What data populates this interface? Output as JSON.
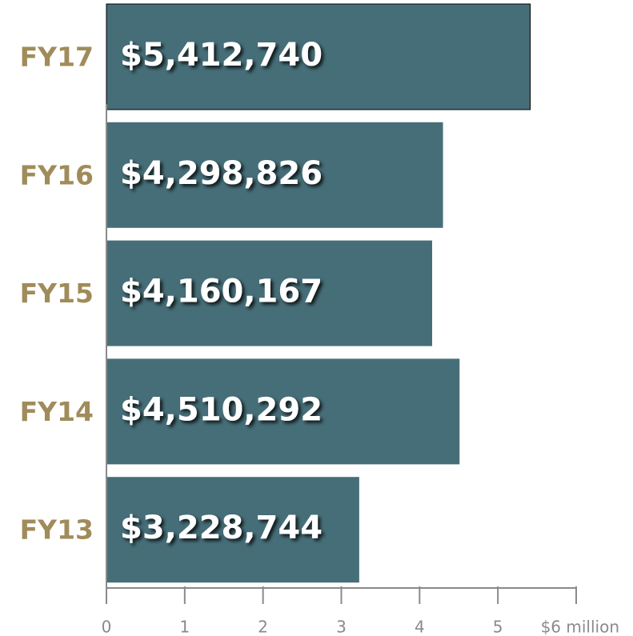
{
  "chart_data": {
    "type": "bar",
    "orientation": "horizontal",
    "categories": [
      "FY17",
      "FY16",
      "FY15",
      "FY14",
      "FY13"
    ],
    "values": [
      5.41274,
      4.298826,
      4.160167,
      4.510292,
      3.228744
    ],
    "value_labels": [
      "$5,412,740",
      "$4,298,826",
      "$4,160,167",
      "$4,510,292",
      "$3,228,744"
    ],
    "color": "#466e78",
    "xlim": [
      0,
      6
    ],
    "xticks": [
      0,
      1,
      2,
      3,
      4,
      5,
      {
        "value": 6,
        "label": "$6 million"
      }
    ]
  }
}
